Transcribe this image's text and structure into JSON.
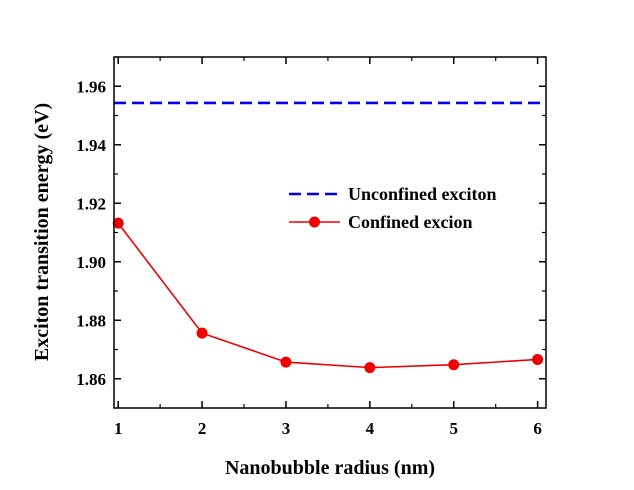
{
  "chart_data": {
    "type": "line",
    "title": "",
    "xlabel": "Nanobubble radius (nm)",
    "ylabel": "Exciton transition energy (eV)",
    "xlim": [
      0.95,
      6.1
    ],
    "ylim": [
      1.85,
      1.97
    ],
    "xticks": [
      1,
      2,
      3,
      4,
      5,
      6
    ],
    "yticks": [
      1.86,
      1.88,
      1.9,
      1.92,
      1.94,
      1.96
    ],
    "xtick_labels": [
      "1",
      "2",
      "3",
      "4",
      "5",
      "6"
    ],
    "ytick_labels": [
      "1.86",
      "1.88",
      "1.90",
      "1.92",
      "1.94",
      "1.96"
    ],
    "legend_position": "center-right",
    "series": [
      {
        "name": "Unconfined exciton",
        "style": "dashed",
        "color": "#0000ee",
        "x": [
          0.95,
          6.1
        ],
        "values": [
          1.9543,
          1.9543
        ]
      },
      {
        "name": "Confined excion",
        "style": "line-marker",
        "color": "#ee0000",
        "x": [
          1,
          2,
          3,
          4,
          5,
          6
        ],
        "values": [
          1.9132,
          1.8756,
          1.8657,
          1.8638,
          1.8648,
          1.8666
        ]
      }
    ]
  }
}
